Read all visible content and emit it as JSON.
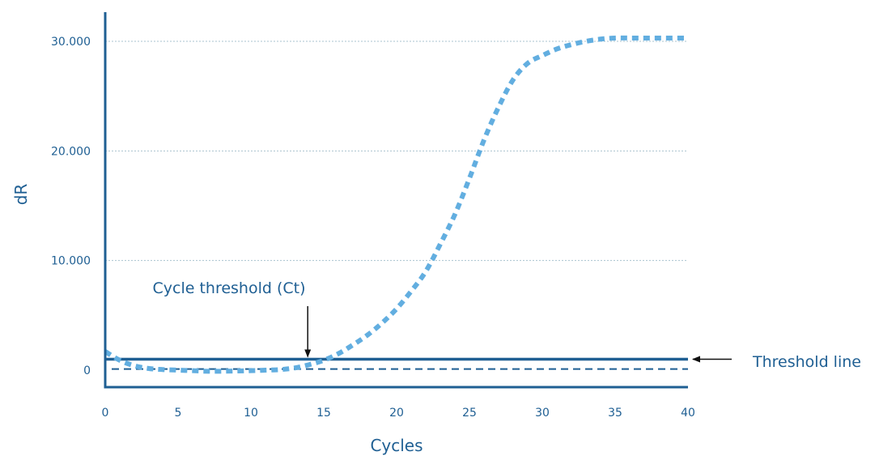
{
  "chart_data": {
    "type": "line",
    "xlabel": "Cycles",
    "ylabel": "dR",
    "xlim": [
      0,
      40
    ],
    "ylim": [
      -1500,
      32000
    ],
    "x_ticks": [
      0,
      5,
      10,
      15,
      20,
      25,
      30,
      35,
      40
    ],
    "x_tick_labels": [
      "0",
      "5",
      "10",
      "15",
      "20",
      "25",
      "30",
      "35",
      "40"
    ],
    "y_ticks": [
      0,
      10000,
      20000,
      30000
    ],
    "y_tick_labels": [
      "0",
      "10.000",
      "20.000",
      "30.000"
    ],
    "grid": "horizontal",
    "series": [
      {
        "style": "dotted",
        "color": "#62aee0",
        "x": [
          0,
          1,
          2,
          3,
          4,
          5,
          6,
          7,
          8,
          9,
          10,
          11,
          12,
          13,
          14,
          15,
          16,
          17,
          18,
          19,
          20,
          21,
          22,
          23,
          24,
          25,
          26,
          27,
          28,
          29,
          30,
          31,
          32,
          33,
          34,
          35,
          36,
          37,
          38,
          39,
          40
        ],
        "values": [
          1700,
          900,
          400,
          150,
          50,
          0,
          -50,
          -100,
          -100,
          -80,
          -50,
          0,
          50,
          200,
          500,
          900,
          1500,
          2300,
          3200,
          4300,
          5600,
          7200,
          9000,
          11500,
          14200,
          17500,
          21000,
          24000,
          26500,
          28000,
          28700,
          29300,
          29700,
          30000,
          30200,
          30300,
          30300,
          30300,
          30300,
          30300,
          30300
        ]
      }
    ],
    "threshold_line": {
      "y": 1000,
      "style": "solid",
      "color": "#1f5f93"
    },
    "baseline_line": {
      "y": 100,
      "style": "dashed",
      "color": "#1f5f93"
    },
    "ct_x": 13.9,
    "annotations": {
      "ct_label": "Cycle threshold (Ct)",
      "threshold_label": "Threshold line"
    }
  }
}
